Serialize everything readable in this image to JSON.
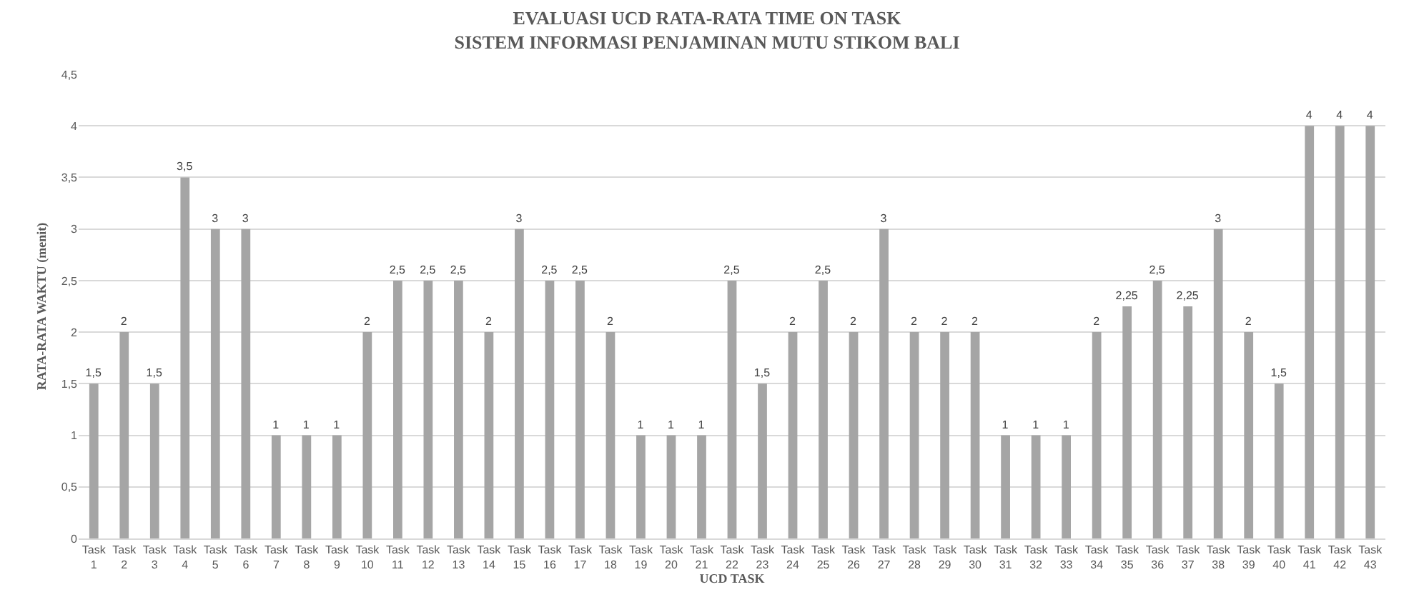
{
  "chart_data": {
    "type": "bar",
    "title": "EVALUASI UCD RATA-RATA TIME ON TASK\nSISTEM INFORMASI PENJAMINAN MUTU STIKOM BALI",
    "xlabel": "UCD TASK",
    "ylabel": "RATA-RATA WAKTU (menit)",
    "categories": [
      "Task 1",
      "Task 2",
      "Task 3",
      "Task 4",
      "Task 5",
      "Task 6",
      "Task 7",
      "Task 8",
      "Task 9",
      "Task 10",
      "Task 11",
      "Task 12",
      "Task 13",
      "Task 14",
      "Task 15",
      "Task 16",
      "Task 17",
      "Task 18",
      "Task 19",
      "Task 20",
      "Task 21",
      "Task 22",
      "Task 23",
      "Task 24",
      "Task 25",
      "Task 26",
      "Task 27",
      "Task 28",
      "Task 29",
      "Task 30",
      "Task 31",
      "Task 32",
      "Task 33",
      "Task 34",
      "Task 35",
      "Task 36",
      "Task 37",
      "Task 38",
      "Task 39",
      "Task 40",
      "Task 41",
      "Task 42",
      "Task 43"
    ],
    "values": [
      1.5,
      2,
      1.5,
      3.5,
      3,
      3,
      1,
      1,
      1,
      2,
      2.5,
      2.5,
      2.5,
      2,
      3,
      2.5,
      2.5,
      2,
      1,
      1,
      1,
      2.5,
      1.5,
      2,
      2.5,
      2,
      3,
      2,
      2,
      2,
      1,
      1,
      1,
      2,
      2.25,
      2.5,
      2.25,
      3,
      2,
      1.5,
      4,
      4,
      4
    ],
    "value_labels": [
      "1,5",
      "2",
      "1,5",
      "3,5",
      "3",
      "3",
      "1",
      "1",
      "1",
      "2",
      "2,5",
      "2,5",
      "2,5",
      "2",
      "3",
      "2,5",
      "2,5",
      "2",
      "1",
      "1",
      "1",
      "2,5",
      "1,5",
      "2",
      "2,5",
      "2",
      "3",
      "2",
      "2",
      "2",
      "1",
      "1",
      "1",
      "2",
      "2,25",
      "2,5",
      "2,25",
      "3",
      "2",
      "1,5",
      "4",
      "4",
      "4"
    ],
    "color": "#a5a5a5",
    "ylim": [
      0,
      4.5
    ],
    "yticks": [
      0,
      {
        "value": 0.5,
        "label": "0,5"
      },
      1,
      {
        "value": 1.5,
        "label": "1,5"
      },
      2,
      {
        "value": 2.5,
        "label": "2,5"
      },
      3,
      {
        "value": 3.5,
        "label": "3,5"
      },
      4,
      {
        "value": 4.5,
        "label": "4,5"
      }
    ],
    "grid": "y"
  }
}
